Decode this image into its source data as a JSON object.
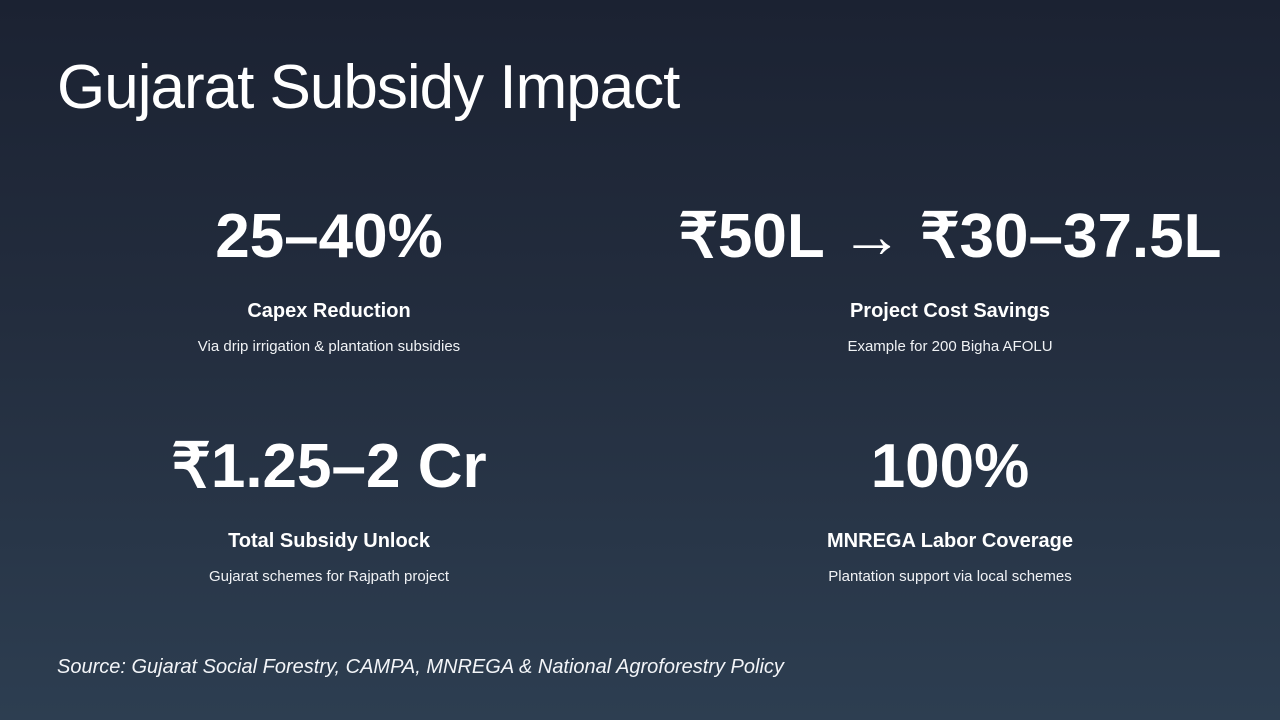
{
  "title": "Gujarat Subsidy Impact",
  "stats": [
    {
      "value": "25–40%",
      "label": "Capex Reduction",
      "description": "Via drip irrigation & plantation subsidies"
    },
    {
      "value": "₹50L → ₹30–37.5L",
      "label": "Project Cost Savings",
      "description": "Example for 200 Bigha AFOLU"
    },
    {
      "value": "₹1.25–2 Cr",
      "label": "Total Subsidy Unlock",
      "description": "Gujarat schemes for Rajpath project"
    },
    {
      "value": "100%",
      "label": "MNREGA Labor Coverage",
      "description": "Plantation support via local schemes"
    }
  ],
  "source": "Source: Gujarat Social Forestry, CAMPA, MNREGA & National Agroforestry Policy"
}
